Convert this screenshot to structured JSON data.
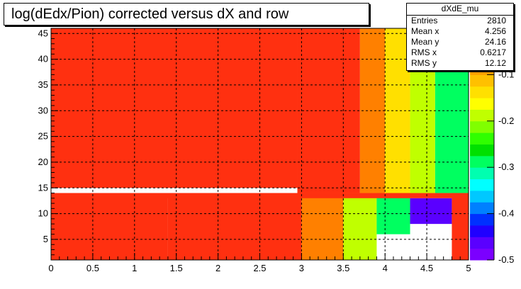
{
  "title": "log(dEdx/Pion) corrected versus dX and row",
  "stats": {
    "name": "dXdE_mu",
    "rows": [
      {
        "key": "Entries",
        "value": "2810"
      },
      {
        "key": "Mean x",
        "value": "4.256"
      },
      {
        "key": "Mean y",
        "value": "24.16"
      },
      {
        "key": "RMS x",
        "value": "0.6217"
      },
      {
        "key": "RMS y",
        "value": "12.12"
      }
    ]
  },
  "chart_data": {
    "type": "heatmap",
    "title": "log(dEdx/Pion) corrected versus dX and row",
    "xlabel": "",
    "ylabel": "",
    "xlim": [
      0,
      5
    ],
    "ylim": [
      1,
      46
    ],
    "x_ticks": [
      "0",
      "0.5",
      "1",
      "1.5",
      "2",
      "2.5",
      "3",
      "3.5",
      "4",
      "4.5",
      "5"
    ],
    "y_ticks": [
      "5",
      "10",
      "15",
      "20",
      "25",
      "30",
      "35",
      "40",
      "45"
    ],
    "z_range": [
      -0.5,
      0
    ],
    "z_ticks": [
      "-0.1",
      "-0.2",
      "-0.3",
      "-0.4",
      "-0.5"
    ],
    "grid": true,
    "palette": [
      "#7b00ff",
      "#5a00ff",
      "#2000ff",
      "#0030ff",
      "#0080ff",
      "#00c8ff",
      "#00ffff",
      "#00ffb0",
      "#00ff60",
      "#00e000",
      "#30ff00",
      "#80ff00",
      "#c0ff00",
      "#ffff00",
      "#ffe000",
      "#ffc000",
      "#ffa000",
      "#ff8000",
      "#ff5000",
      "#ff3010"
    ],
    "regions": [
      {
        "x": [
          0.0,
          2.95
        ],
        "y": [
          15,
          46
        ],
        "z": 0.0
      },
      {
        "x": [
          2.95,
          3.7
        ],
        "y": [
          14,
          46
        ],
        "z": -0.02
      },
      {
        "x": [
          3.7,
          4.0
        ],
        "y": [
          14,
          46
        ],
        "z": -0.06
      },
      {
        "x": [
          4.0,
          4.3
        ],
        "y": [
          14,
          46
        ],
        "z": -0.14
      },
      {
        "x": [
          4.3,
          4.6
        ],
        "y": [
          14,
          46
        ],
        "z": -0.2
      },
      {
        "x": [
          4.6,
          5.0
        ],
        "y": [
          14,
          46
        ],
        "z": -0.3
      },
      {
        "x": [
          0.0,
          1.4
        ],
        "y": [
          1,
          14
        ],
        "z": 0.0
      },
      {
        "x": [
          1.4,
          3.0
        ],
        "y": [
          1,
          14
        ],
        "z": -0.02
      },
      {
        "x": [
          3.0,
          3.5
        ],
        "y": [
          1,
          14
        ],
        "z": -0.06
      },
      {
        "x": [
          3.5,
          3.9
        ],
        "y": [
          1,
          14
        ],
        "z": -0.18
      },
      {
        "x": [
          3.9,
          4.3
        ],
        "y": [
          6,
          14
        ],
        "z": -0.3
      },
      {
        "x": [
          4.3,
          4.8
        ],
        "y": [
          8,
          13
        ],
        "z": -0.46
      },
      {
        "x": [
          4.8,
          5.0
        ],
        "y": [
          1,
          14
        ],
        "z": 0.0
      },
      {
        "x": [
          0.0,
          5.0
        ],
        "y": [
          13,
          14
        ],
        "z": 0.0
      }
    ]
  }
}
